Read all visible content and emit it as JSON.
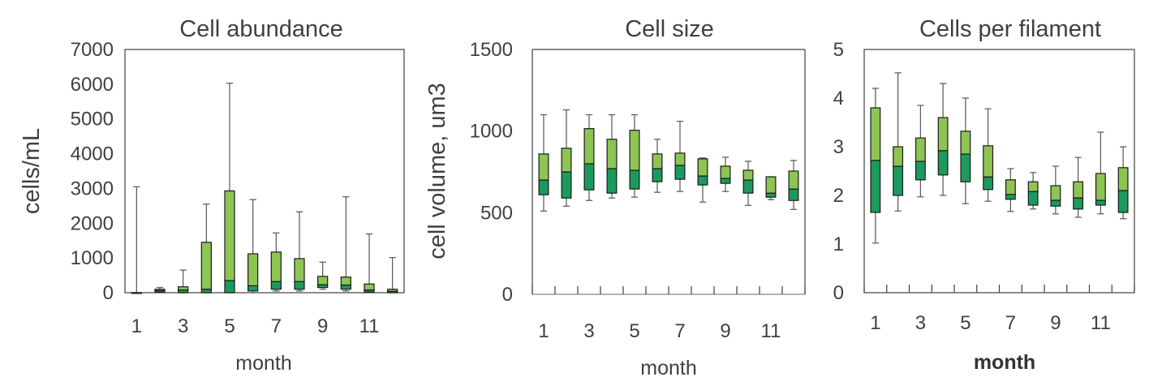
{
  "colors": {
    "upper_box": "#8dc453",
    "lower_box": "#1a9a5c",
    "whisker": "#555555",
    "axis": "#404040"
  },
  "chart_data": [
    {
      "type": "box",
      "title": "Cell abundance",
      "xlabel": "month",
      "ylabel": "cells/mL",
      "ylim": [
        0,
        7000
      ],
      "yticks": [
        "0",
        "1000",
        "2000",
        "3000",
        "4000",
        "5000",
        "6000",
        "7000"
      ],
      "yticks_values": [
        0,
        1000,
        2000,
        3000,
        4000,
        5000,
        6000,
        7000
      ],
      "xticks": [
        "1",
        "3",
        "5",
        "7",
        "9",
        "11"
      ],
      "xticks_values": [
        1,
        3,
        5,
        7,
        9,
        11
      ],
      "months": [
        1,
        2,
        3,
        4,
        5,
        6,
        7,
        8,
        9,
        10,
        11,
        12
      ],
      "min": [
        0,
        0,
        0,
        0,
        0,
        0,
        50,
        50,
        100,
        50,
        0,
        0
      ],
      "q1": [
        0,
        20,
        0,
        0,
        0,
        50,
        100,
        100,
        150,
        100,
        20,
        0
      ],
      "median": [
        0,
        60,
        80,
        100,
        350,
        200,
        320,
        320,
        230,
        220,
        80,
        40
      ],
      "q3": [
        0,
        100,
        170,
        1450,
        2930,
        1120,
        1170,
        980,
        470,
        450,
        250,
        100
      ],
      "max": [
        3050,
        150,
        650,
        2550,
        6030,
        2680,
        1720,
        2330,
        880,
        2760,
        1690,
        1010
      ]
    },
    {
      "type": "box",
      "title": "Cell size",
      "xlabel": "month",
      "ylabel": "cell volume, um3",
      "ylim": [
        0,
        1500
      ],
      "yticks": [
        "0",
        "500",
        "1000",
        "1500"
      ],
      "yticks_values": [
        0,
        500,
        1000,
        1500
      ],
      "xticks": [
        "1",
        "3",
        "5",
        "7",
        "9",
        "11"
      ],
      "xticks_values": [
        1,
        3,
        5,
        7,
        9,
        11
      ],
      "months": [
        1,
        2,
        3,
        4,
        5,
        6,
        7,
        8,
        9,
        10,
        11,
        12
      ],
      "min": [
        510,
        540,
        575,
        590,
        595,
        625,
        630,
        565,
        630,
        545,
        580,
        520
      ],
      "q1": [
        610,
        590,
        640,
        620,
        645,
        690,
        705,
        670,
        680,
        620,
        595,
        575
      ],
      "median": [
        700,
        750,
        800,
        770,
        760,
        770,
        790,
        725,
        710,
        700,
        620,
        645
      ],
      "q3": [
        860,
        895,
        1015,
        950,
        1005,
        860,
        865,
        830,
        785,
        760,
        720,
        755
      ],
      "max": [
        1100,
        1130,
        1100,
        1100,
        1100,
        950,
        1060,
        835,
        840,
        815,
        720,
        820
      ]
    },
    {
      "type": "box",
      "title": "Cells per filament",
      "xlabel": "month",
      "ylabel": "",
      "ylim": [
        0,
        5
      ],
      "yticks": [
        "0",
        "1",
        "2",
        "3",
        "4",
        "5"
      ],
      "yticks_values": [
        0,
        1,
        2,
        3,
        4,
        5
      ],
      "xticks": [
        "1",
        "3",
        "5",
        "7",
        "9",
        "11"
      ],
      "xticks_values": [
        1,
        3,
        5,
        7,
        9,
        11
      ],
      "months": [
        1,
        2,
        3,
        4,
        5,
        6,
        7,
        8,
        9,
        10,
        11,
        12
      ],
      "min": [
        1.02,
        1.68,
        1.97,
        2.0,
        1.83,
        1.88,
        1.67,
        1.72,
        1.62,
        1.55,
        1.62,
        1.52
      ],
      "q1": [
        1.65,
        2.0,
        2.32,
        2.42,
        2.28,
        2.12,
        1.92,
        1.8,
        1.78,
        1.72,
        1.8,
        1.65
      ],
      "median": [
        2.72,
        2.6,
        2.7,
        2.92,
        2.85,
        2.38,
        2.02,
        2.08,
        1.9,
        1.95,
        1.9,
        2.1
      ],
      "q3": [
        3.8,
        3.0,
        3.18,
        3.6,
        3.32,
        3.02,
        2.32,
        2.28,
        2.2,
        2.28,
        2.45,
        2.57
      ],
      "max": [
        4.2,
        4.52,
        3.85,
        4.3,
        4.0,
        3.78,
        2.55,
        2.47,
        2.6,
        2.78,
        3.3,
        3.0
      ]
    }
  ]
}
